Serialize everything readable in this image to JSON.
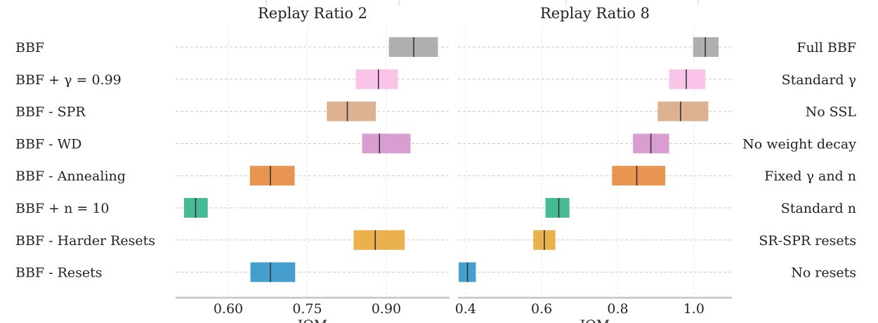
{
  "chart_data": [
    {
      "type": "bar",
      "subtype": "interval",
      "title": "Replay Ratio 2",
      "xlabel": "IQM",
      "xlim": [
        0.5,
        1.02
      ],
      "xticks": [
        0.6,
        0.75,
        0.9
      ],
      "xtick_labels": [
        "0.60",
        "0.75",
        "0.90"
      ],
      "label_side": "left",
      "grid": true,
      "categories": [
        "BBF",
        "BBF + γ = 0.99",
        "BBF - SPR",
        "BBF - WD",
        "BBF - Annealing",
        "BBF + n = 10",
        "BBF - Harder Resets",
        "BBF - Resets"
      ],
      "series": [
        {
          "low": 0.905,
          "median": 0.952,
          "high": 0.998,
          "color": "#a6a6a6"
        },
        {
          "low": 0.842,
          "median": 0.885,
          "high": 0.922,
          "color": "#f9bde6"
        },
        {
          "low": 0.787,
          "median": 0.826,
          "high": 0.88,
          "color": "#d9aa84"
        },
        {
          "low": 0.854,
          "median": 0.887,
          "high": 0.946,
          "color": "#d593cc"
        },
        {
          "low": 0.641,
          "median": 0.68,
          "high": 0.726,
          "color": "#e58a3f"
        },
        {
          "low": 0.516,
          "median": 0.538,
          "high": 0.561,
          "color": "#32b38a"
        },
        {
          "low": 0.838,
          "median": 0.879,
          "high": 0.935,
          "color": "#e8a93a"
        },
        {
          "low": 0.642,
          "median": 0.68,
          "high": 0.727,
          "color": "#3194c8"
        }
      ]
    },
    {
      "type": "bar",
      "subtype": "interval",
      "title": "Replay Ratio 8",
      "xlabel": "IQM",
      "xlim": [
        0.38,
        1.1
      ],
      "xticks": [
        0.4,
        0.6,
        0.8,
        1.0
      ],
      "xtick_labels": [
        "0.4",
        "0.6",
        "0.8",
        "1.0"
      ],
      "label_side": "right",
      "grid": true,
      "categories": [
        "Full BBF",
        "Standard γ",
        "No SSL",
        "No weight decay",
        "Fixed γ and n",
        "Standard n",
        "SR-SPR resets",
        "No resets"
      ],
      "series": [
        {
          "low": 0.998,
          "median": 1.03,
          "high": 1.065,
          "color": "#a6a6a6"
        },
        {
          "low": 0.935,
          "median": 0.98,
          "high": 1.03,
          "color": "#f9bde6"
        },
        {
          "low": 0.905,
          "median": 0.965,
          "high": 1.038,
          "color": "#d9aa84"
        },
        {
          "low": 0.84,
          "median": 0.887,
          "high": 0.935,
          "color": "#d593cc"
        },
        {
          "low": 0.785,
          "median": 0.85,
          "high": 0.925,
          "color": "#e58a3f"
        },
        {
          "low": 0.61,
          "median": 0.645,
          "high": 0.673,
          "color": "#32b38a"
        },
        {
          "low": 0.578,
          "median": 0.607,
          "high": 0.636,
          "color": "#e8a93a"
        },
        {
          "low": 0.382,
          "median": 0.405,
          "high": 0.427,
          "color": "#3194c8"
        }
      ]
    }
  ]
}
